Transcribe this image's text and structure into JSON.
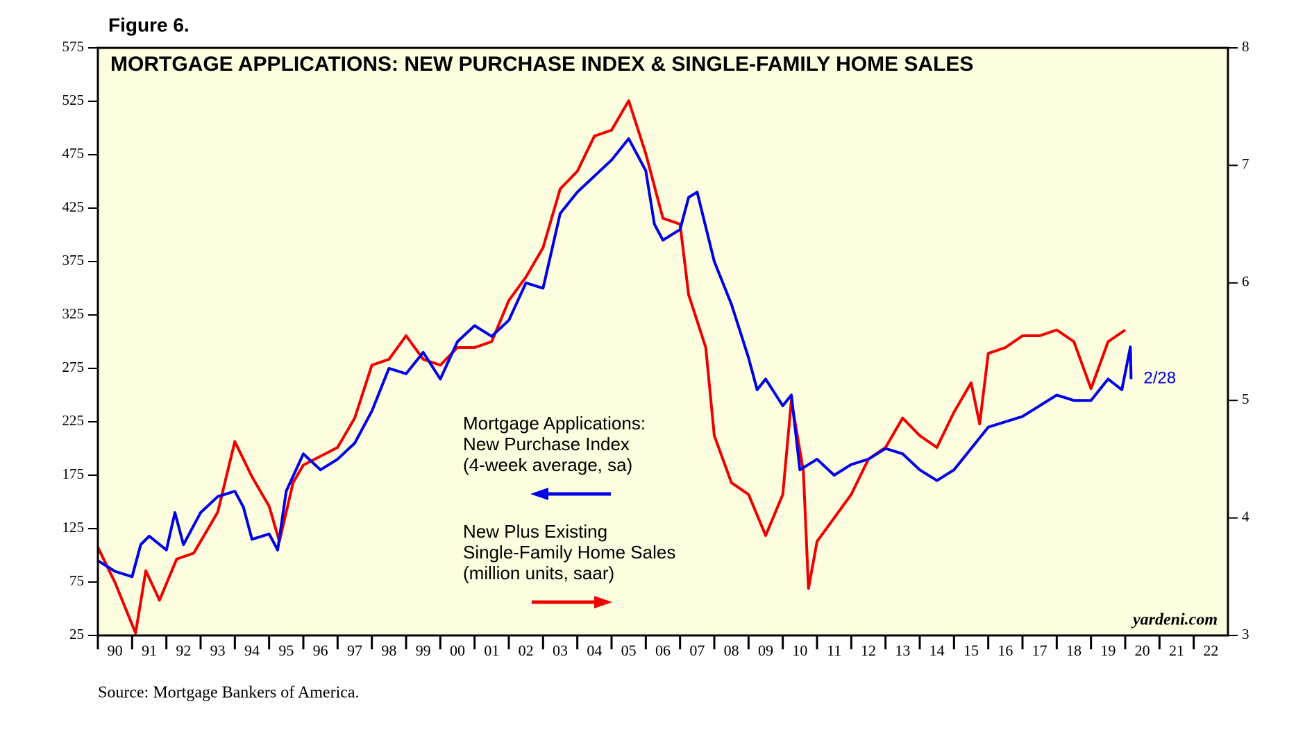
{
  "chart_data": {
    "type": "line",
    "figure_label": "Figure 6.",
    "title": "MORTGAGE APPLICATIONS: NEW PURCHASE INDEX & SINGLE-FAMILY HOME SALES",
    "source": "Source: Mortgage Bankers of America.",
    "watermark": "yardeni.com",
    "end_label": "2/28",
    "xlim": [
      1990,
      2023
    ],
    "xticks": [
      {
        "value": 1990,
        "label": "90"
      },
      {
        "value": 1991,
        "label": "91"
      },
      {
        "value": 1992,
        "label": "92"
      },
      {
        "value": 1993,
        "label": "93"
      },
      {
        "value": 1994,
        "label": "94"
      },
      {
        "value": 1995,
        "label": "95"
      },
      {
        "value": 1996,
        "label": "96"
      },
      {
        "value": 1997,
        "label": "97"
      },
      {
        "value": 1998,
        "label": "98"
      },
      {
        "value": 1999,
        "label": "99"
      },
      {
        "value": 2000,
        "label": "00"
      },
      {
        "value": 2001,
        "label": "01"
      },
      {
        "value": 2002,
        "label": "02"
      },
      {
        "value": 2003,
        "label": "03"
      },
      {
        "value": 2004,
        "label": "04"
      },
      {
        "value": 2005,
        "label": "05"
      },
      {
        "value": 2006,
        "label": "06"
      },
      {
        "value": 2007,
        "label": "07"
      },
      {
        "value": 2008,
        "label": "08"
      },
      {
        "value": 2009,
        "label": "09"
      },
      {
        "value": 2010,
        "label": "10"
      },
      {
        "value": 2011,
        "label": "11"
      },
      {
        "value": 2012,
        "label": "12"
      },
      {
        "value": 2013,
        "label": "13"
      },
      {
        "value": 2014,
        "label": "14"
      },
      {
        "value": 2015,
        "label": "15"
      },
      {
        "value": 2016,
        "label": "16"
      },
      {
        "value": 2017,
        "label": "17"
      },
      {
        "value": 2018,
        "label": "18"
      },
      {
        "value": 2019,
        "label": "19"
      },
      {
        "value": 2020,
        "label": "20"
      },
      {
        "value": 2021,
        "label": "21"
      },
      {
        "value": 2022,
        "label": "22"
      }
    ],
    "ylim": [
      25,
      575
    ],
    "yticks": [
      25,
      75,
      125,
      175,
      225,
      275,
      325,
      375,
      425,
      475,
      525,
      575
    ],
    "y2lim": [
      3,
      8
    ],
    "y2ticks": [
      3,
      4,
      5,
      6,
      7,
      8
    ],
    "series": [
      {
        "name": [
          "Mortgage Applications:",
          "New Purchase Index",
          "(4-week average, sa)"
        ],
        "color": "#0000e6",
        "axis": "y",
        "x": [
          1990.0,
          1990.5,
          1991.0,
          1991.25,
          1991.5,
          1992.0,
          1992.25,
          1992.5,
          1993.0,
          1993.5,
          1994.0,
          1994.25,
          1994.5,
          1995.0,
          1995.25,
          1995.5,
          1996.0,
          1996.5,
          1997.0,
          1997.5,
          1998.0,
          1998.5,
          1999.0,
          1999.5,
          2000.0,
          2000.5,
          2001.0,
          2001.5,
          2002.0,
          2002.5,
          2003.0,
          2003.5,
          2004.0,
          2004.5,
          2005.0,
          2005.5,
          2006.0,
          2006.25,
          2006.5,
          2007.0,
          2007.25,
          2007.5,
          2008.0,
          2008.5,
          2009.0,
          2009.25,
          2009.5,
          2010.0,
          2010.25,
          2010.5,
          2011.0,
          2011.5,
          2012.0,
          2012.5,
          2013.0,
          2013.5,
          2014.0,
          2014.5,
          2015.0,
          2015.5,
          2016.0,
          2016.5,
          2017.0,
          2017.5,
          2018.0,
          2018.5,
          2019.0,
          2019.5,
          2019.9,
          2020.15,
          2020.17
        ],
        "values": [
          95,
          85,
          80,
          110,
          118,
          105,
          140,
          110,
          140,
          155,
          160,
          145,
          115,
          120,
          105,
          160,
          195,
          180,
          190,
          205,
          235,
          275,
          270,
          290,
          265,
          300,
          315,
          305,
          320,
          355,
          350,
          420,
          440,
          455,
          470,
          490,
          460,
          410,
          395,
          405,
          435,
          440,
          375,
          335,
          285,
          255,
          265,
          240,
          250,
          180,
          190,
          175,
          185,
          190,
          200,
          195,
          180,
          170,
          180,
          200,
          220,
          225,
          230,
          240,
          250,
          245,
          245,
          265,
          255,
          295,
          265
        ]
      },
      {
        "name": [
          "New Plus Existing",
          "Single-Family Home Sales",
          "(million units, saar)"
        ],
        "color": "#ee0000",
        "axis": "y2",
        "x": [
          1990.0,
          1990.5,
          1991.1,
          1991.4,
          1991.8,
          1992.3,
          1992.8,
          1993.5,
          1994.0,
          1994.5,
          1995.0,
          1995.3,
          1995.7,
          1996.0,
          1997.0,
          1997.5,
          1998.0,
          1998.5,
          1999.0,
          1999.5,
          2000.0,
          2000.5,
          2001.0,
          2001.5,
          2002.0,
          2002.5,
          2003.0,
          2003.5,
          2004.0,
          2004.5,
          2005.0,
          2005.5,
          2006.0,
          2006.5,
          2007.0,
          2007.25,
          2007.75,
          2008.0,
          2008.5,
          2009.0,
          2009.5,
          2010.0,
          2010.25,
          2010.6,
          2010.75,
          2011.0,
          2011.5,
          2012.0,
          2012.5,
          2013.0,
          2013.5,
          2014.0,
          2014.5,
          2015.0,
          2015.5,
          2015.75,
          2016.0,
          2016.5,
          2017.0,
          2017.5,
          2018.0,
          2018.5,
          2019.0,
          2019.5,
          2020.0
        ],
        "values": [
          3.75,
          3.45,
          3.02,
          3.55,
          3.3,
          3.65,
          3.7,
          4.05,
          4.65,
          4.35,
          4.1,
          3.8,
          4.3,
          4.45,
          4.6,
          4.85,
          5.3,
          5.35,
          5.55,
          5.35,
          5.3,
          5.45,
          5.45,
          5.5,
          5.85,
          6.05,
          6.3,
          6.8,
          6.95,
          7.25,
          7.3,
          7.55,
          7.1,
          6.55,
          6.5,
          5.9,
          5.45,
          4.7,
          4.3,
          4.2,
          3.85,
          4.2,
          5.0,
          4.4,
          3.4,
          3.8,
          4.0,
          4.2,
          4.5,
          4.6,
          4.85,
          4.7,
          4.6,
          4.9,
          5.15,
          4.8,
          5.4,
          5.45,
          5.55,
          5.55,
          5.6,
          5.5,
          5.1,
          5.5,
          5.6
        ]
      }
    ]
  }
}
